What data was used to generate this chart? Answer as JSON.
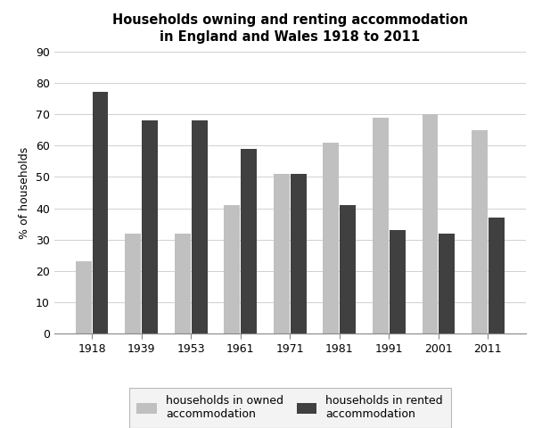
{
  "title": "Households owning and renting accommodation\nin England and Wales 1918 to 2011",
  "years": [
    "1918",
    "1939",
    "1953",
    "1961",
    "1971",
    "1981",
    "1991",
    "2001",
    "2011"
  ],
  "owned": [
    23,
    32,
    32,
    41,
    51,
    61,
    69,
    70,
    65
  ],
  "rented": [
    77,
    68,
    68,
    59,
    51,
    41,
    33,
    32,
    37
  ],
  "owned_color": "#c0c0c0",
  "rented_color": "#404040",
  "ylabel": "% of households",
  "ylim": [
    0,
    90
  ],
  "yticks": [
    0,
    10,
    20,
    30,
    40,
    50,
    60,
    70,
    80,
    90
  ],
  "legend_owned": "households in owned\naccommodation",
  "legend_rented": "households in rented\naccommodation",
  "bar_width": 0.32,
  "bar_gap": 0.02,
  "background_color": "#ffffff",
  "title_fontsize": 10.5,
  "axis_fontsize": 9,
  "tick_fontsize": 9,
  "grid_color": "#d0d0d0"
}
